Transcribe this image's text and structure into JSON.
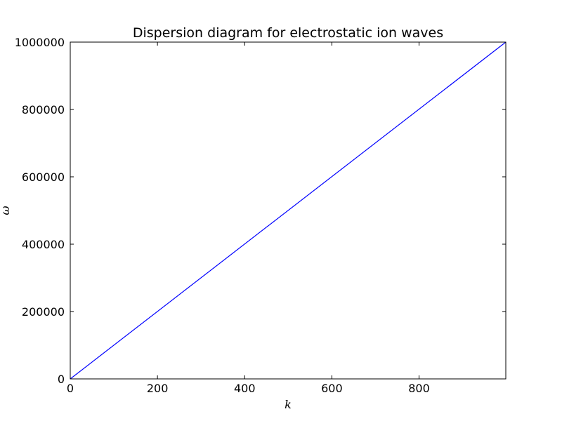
{
  "chart_data": {
    "type": "line",
    "title": "Dispersion diagram for electrostatic ion waves",
    "xlabel": "k",
    "ylabel": "ω",
    "xlim": [
      0,
      999
    ],
    "ylim": [
      0,
      1000000
    ],
    "x_ticks": [
      0,
      200,
      400,
      600,
      800
    ],
    "y_ticks": [
      0,
      200000,
      400000,
      600000,
      800000,
      1000000
    ],
    "grid": false,
    "series": [
      {
        "color": "#0000ff",
        "x": [
          0,
          999
        ],
        "y": [
          0,
          1000000
        ]
      }
    ]
  }
}
